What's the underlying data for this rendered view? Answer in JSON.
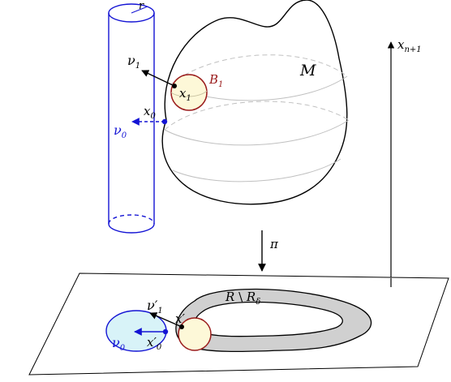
{
  "colors": {
    "cylinder": "#1414d4",
    "ball_stroke": "#9a1b1b",
    "ball_fill": "#fdf8d8",
    "disk_fill": "#d8f3f8",
    "annulus_fill": "#d0d0d0",
    "ink": "#000000",
    "guide": "#bdbdbd"
  },
  "labels": {
    "r": "r",
    "M": "M",
    "B": "B",
    "B_sub": "1",
    "x1": "x",
    "x1_sub": "1",
    "nu1": "ν",
    "nu1_sub": "1",
    "x0": "x",
    "x0_sub": "0",
    "nu0": "ν",
    "nu0_sub": "0",
    "xn1": "x",
    "xn1_sub": "n+1",
    "pi": "π",
    "annulus_R": "R",
    "annulus_minus": " \\ ",
    "annulus_Rd": "R",
    "annulus_Rd_sub": "δ",
    "xp": "x′",
    "nu1p": "ν′",
    "nu1p_sub": "1",
    "x0p": "x′",
    "x0p_sub": "0",
    "nu0p": "ν",
    "nu0p_sub": "0"
  }
}
